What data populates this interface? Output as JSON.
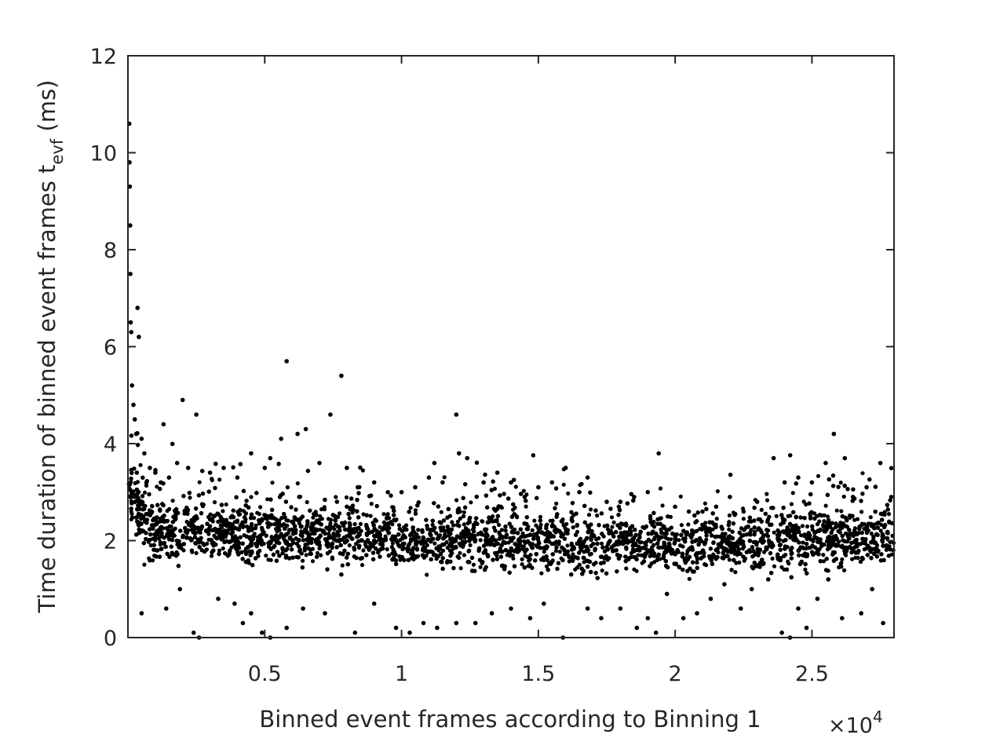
{
  "chart_data": {
    "type": "scatter",
    "title": "",
    "xlabel": "Binned event frames according to Binning 1",
    "ylabel_main": "Time duration of binned event frames t",
    "ylabel_sub": "evf",
    "ylabel_unit": " (ms)",
    "x_multiplier": {
      "base": "×10",
      "exponent": "4"
    },
    "xlim": [
      0,
      28000
    ],
    "ylim": [
      0,
      12
    ],
    "x_ticks": [
      5000,
      10000,
      15000,
      20000,
      25000
    ],
    "x_tick_labels": [
      "0.5",
      "1",
      "1.5",
      "2",
      "2.5"
    ],
    "y_ticks": [
      0,
      2,
      4,
      6,
      8,
      10,
      12
    ],
    "y_tick_labels": [
      "0",
      "2",
      "4",
      "6",
      "8",
      "10",
      "12"
    ],
    "grid": false,
    "box": true,
    "marker_color": "#000000",
    "series": [
      {
        "points": [
          [
            50,
            10.6
          ],
          [
            60,
            9.8
          ],
          [
            70,
            9.3
          ],
          [
            80,
            8.5
          ],
          [
            90,
            7.5
          ],
          [
            100,
            6.5
          ],
          [
            120,
            6.3
          ],
          [
            150,
            5.2
          ],
          [
            200,
            4.8
          ],
          [
            250,
            4.5
          ],
          [
            300,
            4.2
          ],
          [
            350,
            6.8
          ],
          [
            400,
            6.2
          ],
          [
            500,
            4.1
          ],
          [
            600,
            3.8
          ],
          [
            800,
            3.5
          ],
          [
            1000,
            3.4
          ],
          [
            1200,
            3.2
          ],
          [
            1300,
            4.4
          ],
          [
            1500,
            3.3
          ],
          [
            1800,
            3.6
          ],
          [
            2000,
            4.9
          ],
          [
            2200,
            3.5
          ],
          [
            2500,
            4.6
          ],
          [
            3000,
            3.4
          ],
          [
            3500,
            3.5
          ],
          [
            4000,
            3.3
          ],
          [
            4500,
            3.8
          ],
          [
            5000,
            3.5
          ],
          [
            5200,
            3.7
          ],
          [
            5600,
            4.1
          ],
          [
            5800,
            5.7
          ],
          [
            6200,
            4.2
          ],
          [
            6500,
            4.3
          ],
          [
            7000,
            3.6
          ],
          [
            7400,
            4.6
          ],
          [
            7800,
            5.4
          ],
          [
            8000,
            3.5
          ],
          [
            8400,
            3.1
          ],
          [
            9000,
            3.2
          ],
          [
            9500,
            3.0
          ],
          [
            10000,
            3.0
          ],
          [
            10500,
            3.1
          ],
          [
            11000,
            3.3
          ],
          [
            11200,
            3.6
          ],
          [
            11500,
            3.2
          ],
          [
            12000,
            4.6
          ],
          [
            12100,
            3.8
          ],
          [
            12400,
            3.7
          ],
          [
            13000,
            3.2
          ],
          [
            13500,
            3.4
          ],
          [
            14000,
            3.2
          ],
          [
            14500,
            2.9
          ],
          [
            15000,
            3.1
          ],
          [
            15500,
            3.2
          ],
          [
            16000,
            3.5
          ],
          [
            16500,
            3.0
          ],
          [
            16800,
            3.3
          ],
          [
            17500,
            2.8
          ],
          [
            18000,
            2.8
          ],
          [
            18500,
            2.9
          ],
          [
            19000,
            3.0
          ],
          [
            19400,
            3.8
          ],
          [
            20000,
            2.7
          ],
          [
            20500,
            2.6
          ],
          [
            21000,
            2.6
          ],
          [
            21500,
            2.7
          ],
          [
            22000,
            2.9
          ],
          [
            22500,
            2.6
          ],
          [
            23000,
            2.8
          ],
          [
            23600,
            3.7
          ],
          [
            24000,
            3.2
          ],
          [
            24500,
            3.3
          ],
          [
            25000,
            3.2
          ],
          [
            25500,
            3.6
          ],
          [
            25800,
            4.2
          ],
          [
            26200,
            3.7
          ],
          [
            26500,
            2.9
          ],
          [
            27000,
            3.1
          ],
          [
            27500,
            3.6
          ],
          [
            27900,
            2.9
          ],
          [
            500,
            0.5
          ],
          [
            1400,
            0.6
          ],
          [
            1900,
            1.0
          ],
          [
            2400,
            0.1
          ],
          [
            2600,
            0.0
          ],
          [
            3300,
            0.8
          ],
          [
            3900,
            0.7
          ],
          [
            4200,
            0.3
          ],
          [
            4500,
            0.5
          ],
          [
            4900,
            0.1
          ],
          [
            5200,
            0.0
          ],
          [
            5800,
            0.2
          ],
          [
            6400,
            0.6
          ],
          [
            7200,
            0.5
          ],
          [
            7800,
            1.3
          ],
          [
            8300,
            0.1
          ],
          [
            9000,
            0.7
          ],
          [
            9800,
            0.2
          ],
          [
            10300,
            0.1
          ],
          [
            10800,
            0.3
          ],
          [
            11300,
            0.2
          ],
          [
            12000,
            0.3
          ],
          [
            12700,
            0.3
          ],
          [
            13300,
            0.5
          ],
          [
            14000,
            0.6
          ],
          [
            14700,
            0.4
          ],
          [
            15200,
            0.7
          ],
          [
            15900,
            0.0
          ],
          [
            16200,
            1.3
          ],
          [
            16800,
            0.6
          ],
          [
            17300,
            0.4
          ],
          [
            18000,
            0.6
          ],
          [
            18600,
            0.2
          ],
          [
            19000,
            0.4
          ],
          [
            19300,
            0.1
          ],
          [
            19700,
            0.9
          ],
          [
            20300,
            0.4
          ],
          [
            20800,
            0.5
          ],
          [
            21300,
            0.8
          ],
          [
            21800,
            1.1
          ],
          [
            22400,
            0.6
          ],
          [
            22800,
            1.0
          ],
          [
            23400,
            1.2
          ],
          [
            23900,
            0.1
          ],
          [
            24200,
            0.0
          ],
          [
            24500,
            0.6
          ],
          [
            24800,
            0.2
          ],
          [
            25200,
            0.8
          ],
          [
            25600,
            1.2
          ],
          [
            26100,
            0.4
          ],
          [
            26800,
            0.5
          ],
          [
            27200,
            1.0
          ],
          [
            27600,
            0.3
          ]
        ]
      }
    ]
  }
}
